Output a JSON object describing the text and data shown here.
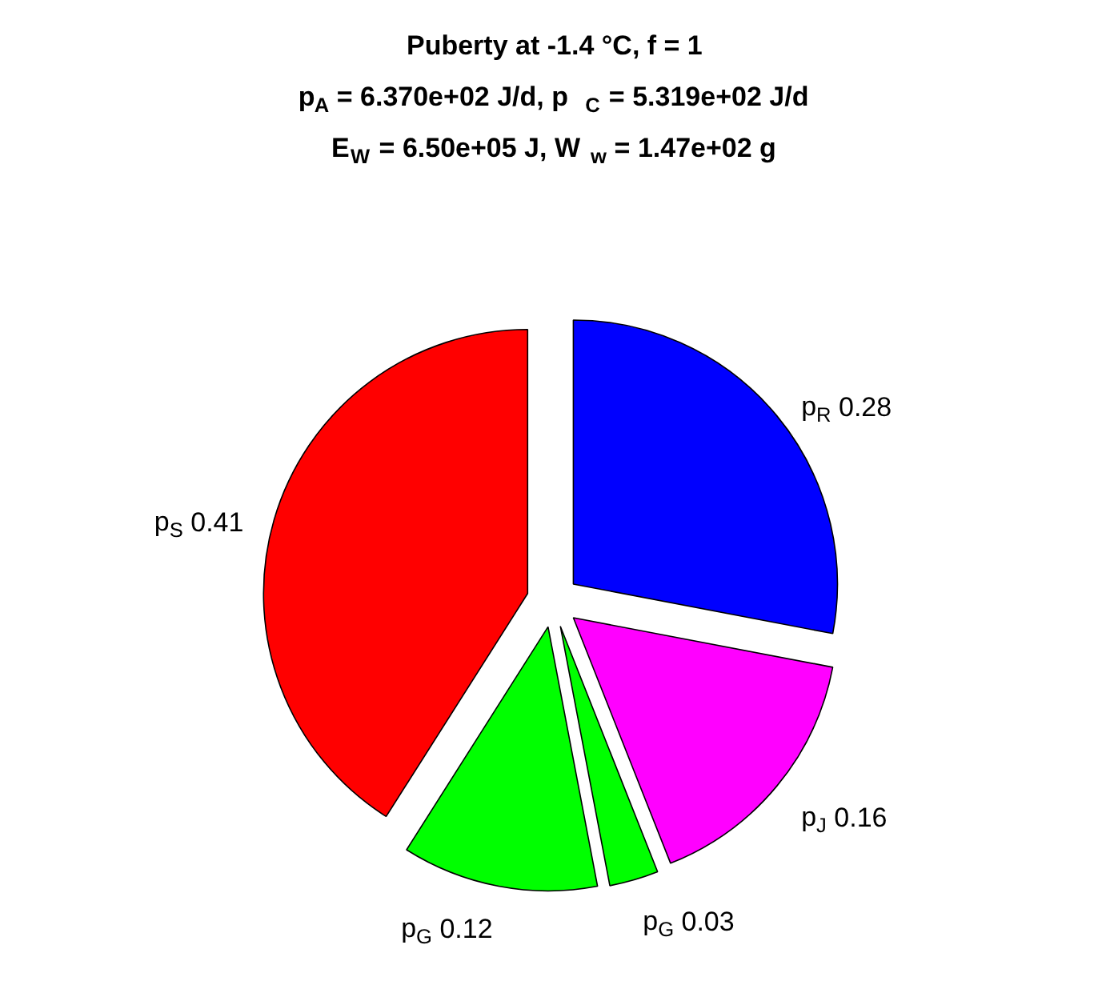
{
  "chart_data": {
    "type": "pie",
    "title": "Puberty at -1.4 °C, f = 1\np$_{A}$ = 6.370e+02 J/d,  p$_{C}$ = 5.319e+02 J/d\nE$_{W}$ = 6.50e+05 J, W$_{w}$ = 1.47e+02 g",
    "categories": [
      "p$_{R}$",
      "p$_{J}$",
      "p$_{G}$",
      "p$_{G}$",
      "p$_{S}$"
    ],
    "values": [
      0.28,
      0.16,
      0.03,
      0.12,
      0.41
    ],
    "colors": [
      "#0000ff",
      "#ff00ff",
      "#00ff00",
      "#00ff00",
      "#ff0000"
    ],
    "data_labels": true
  }
}
